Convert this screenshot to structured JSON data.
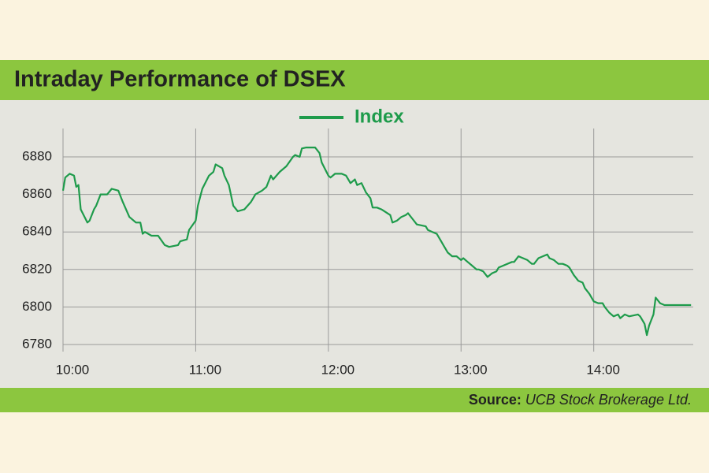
{
  "chart_data": {
    "type": "line",
    "title": "Intraday Performance of DSEX",
    "source_label": "Source:",
    "source_text": "UCB Stock Brokerage Ltd.",
    "x": [
      0,
      1,
      3,
      5,
      6,
      7,
      8,
      11,
      12,
      14,
      15,
      17,
      20,
      22,
      25,
      27,
      30,
      33,
      35,
      36,
      37,
      40,
      43,
      46,
      48,
      52,
      53,
      56,
      57,
      60,
      61,
      63,
      66,
      68,
      69,
      72,
      73,
      75,
      77,
      79,
      82,
      85,
      86,
      87,
      90,
      92,
      94,
      95,
      98,
      101,
      104,
      105,
      107,
      108,
      110,
      114,
      116,
      117,
      120,
      121,
      123,
      126,
      128,
      130,
      132,
      133,
      135,
      137,
      139,
      140,
      142,
      144,
      148,
      149,
      151,
      153,
      155,
      156,
      158,
      160,
      164,
      165,
      167,
      169,
      171,
      172,
      174,
      176,
      178,
      180,
      181,
      183,
      185,
      187,
      188,
      190,
      192,
      194,
      196,
      197,
      199,
      203,
      204,
      206,
      208,
      210,
      212,
      213,
      215,
      217,
      219,
      220,
      222,
      224,
      226,
      228,
      229,
      231,
      233,
      235,
      236,
      238,
      240,
      242,
      244,
      245,
      247,
      249,
      251,
      252,
      254,
      256,
      260,
      261,
      263,
      264,
      265,
      267,
      268,
      270,
      272,
      284
    ],
    "series": [
      {
        "name": "Index",
        "color": "#1e9b4b",
        "values": [
          6862,
          6869,
          6871,
          6870,
          6864,
          6865,
          6852,
          6845,
          6846,
          6852,
          6854,
          6860,
          6860,
          6863,
          6862,
          6856,
          6848,
          6845,
          6845,
          6839,
          6840,
          6838,
          6838,
          6833,
          6832,
          6833,
          6835,
          6836,
          6841,
          6846,
          6854,
          6863,
          6870,
          6872,
          6876,
          6874,
          6870,
          6865,
          6854,
          6851,
          6852,
          6856,
          6858,
          6860,
          6862,
          6864,
          6870,
          6868,
          6872,
          6875,
          6880,
          6881,
          6880,
          6884.5,
          6885,
          6885,
          6882,
          6877,
          6870,
          6869,
          6871,
          6871,
          6870,
          6866,
          6868,
          6865,
          6866,
          6861,
          6858,
          6853,
          6853,
          6852,
          6849,
          6845,
          6846,
          6848,
          6849,
          6850,
          6847,
          6844,
          6843,
          6841,
          6840,
          6839,
          6835,
          6833,
          6829,
          6827,
          6827,
          6825,
          6826,
          6824,
          6822,
          6820,
          6820,
          6819,
          6816,
          6818,
          6819,
          6821,
          6822,
          6824,
          6824,
          6827,
          6826,
          6825,
          6823,
          6823,
          6826,
          6827,
          6828,
          6826,
          6825,
          6823,
          6823,
          6822,
          6821,
          6817,
          6814,
          6813,
          6810,
          6807,
          6803,
          6802,
          6802,
          6800,
          6797,
          6795,
          6796,
          6794,
          6796,
          6795,
          6796,
          6795,
          6791,
          6785,
          6790,
          6796,
          6805,
          6802,
          6801,
          6801
        ]
      }
    ],
    "xlim": [
      0,
      285
    ],
    "xticks": [
      {
        "value": 0,
        "label": "10:00"
      },
      {
        "value": 60,
        "label": "11:00"
      },
      {
        "value": 120,
        "label": "12:00"
      },
      {
        "value": 180,
        "label": "13:00"
      },
      {
        "value": 240,
        "label": "14:00"
      }
    ],
    "ylim": [
      6780,
      6890
    ],
    "yticks": [
      6780,
      6800,
      6820,
      6840,
      6860,
      6880
    ],
    "grid": true
  }
}
